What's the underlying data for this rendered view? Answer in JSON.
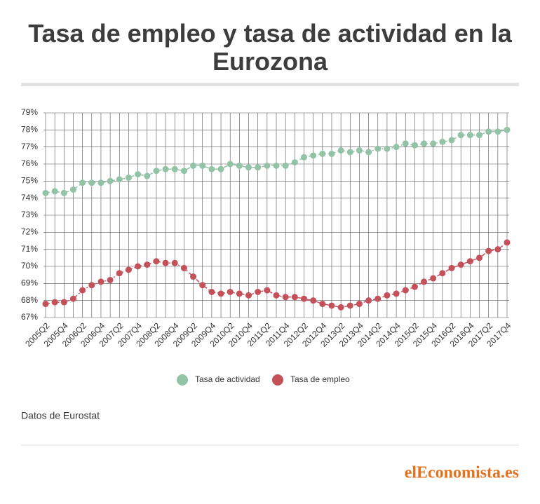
{
  "chart_data": {
    "type": "line",
    "title": "Tasa de empleo y tasa de actividad en la Eurozona",
    "categories": [
      "2005Q2",
      null,
      "2005Q4",
      null,
      "2006Q2",
      null,
      "2006Q4",
      null,
      "2007Q2",
      null,
      "2007Q4",
      null,
      "2008Q2",
      null,
      "2008Q4",
      null,
      "2009Q2",
      null,
      "2009Q4",
      null,
      "2010Q2",
      null,
      "2010Q4",
      null,
      "2011Q2",
      null,
      "2011Q4",
      null,
      "2012Q2",
      null,
      "2012Q4",
      null,
      "2013Q2",
      null,
      "2013Q4",
      null,
      "2014Q2",
      null,
      "2014Q4",
      null,
      "2015Q2",
      null,
      "2015Q4",
      null,
      "2016Q2",
      null,
      "2016Q4",
      null,
      "2017Q2",
      null,
      "2017Q4"
    ],
    "series": [
      {
        "name": "Tasa de actividad",
        "color": "#92c3a6",
        "values": [
          74.3,
          74.4,
          74.3,
          74.5,
          74.9,
          74.9,
          74.9,
          75.0,
          75.1,
          75.2,
          75.4,
          75.3,
          75.6,
          75.7,
          75.7,
          75.6,
          75.9,
          75.9,
          75.7,
          75.7,
          76.0,
          75.9,
          75.8,
          75.8,
          75.9,
          75.9,
          75.9,
          76.1,
          76.4,
          76.5,
          76.6,
          76.6,
          76.8,
          76.7,
          76.8,
          76.7,
          76.9,
          76.9,
          77.0,
          77.2,
          77.1,
          77.2,
          77.2,
          77.3,
          77.4,
          77.7,
          77.7,
          77.7,
          77.9,
          77.9,
          78.0
        ]
      },
      {
        "name": "Tasa de empleo",
        "color": "#c4505a",
        "values": [
          67.8,
          67.9,
          67.9,
          68.1,
          68.6,
          68.9,
          69.1,
          69.2,
          69.6,
          69.8,
          70.0,
          70.1,
          70.3,
          70.2,
          70.2,
          69.9,
          69.4,
          68.9,
          68.5,
          68.4,
          68.5,
          68.4,
          68.3,
          68.5,
          68.6,
          68.3,
          68.2,
          68.2,
          68.1,
          68.0,
          67.8,
          67.7,
          67.6,
          67.7,
          67.8,
          68.0,
          68.1,
          68.3,
          68.4,
          68.6,
          68.8,
          69.1,
          69.3,
          69.6,
          69.9,
          70.1,
          70.3,
          70.5,
          70.9,
          71.0,
          71.4
        ]
      }
    ],
    "ylim": [
      67,
      79
    ],
    "yticks": [
      {
        "value": 67,
        "label": "67%"
      },
      {
        "value": 68,
        "label": "68%"
      },
      {
        "value": 69,
        "label": "69%"
      },
      {
        "value": 70,
        "label": "70%"
      },
      {
        "value": 71,
        "label": "71%"
      },
      {
        "value": 72,
        "label": "72%"
      },
      {
        "value": 73,
        "label": "73%"
      },
      {
        "value": 74,
        "label": "74%"
      },
      {
        "value": 75,
        "label": "75%"
      },
      {
        "value": 76,
        "label": "76%"
      },
      {
        "value": 77,
        "label": "77%"
      },
      {
        "value": 78,
        "label": "78%"
      },
      {
        "value": 79,
        "label": "79%"
      }
    ],
    "grid": true,
    "source": "Datos de Eurostat",
    "logo": "elEconomista.es"
  }
}
